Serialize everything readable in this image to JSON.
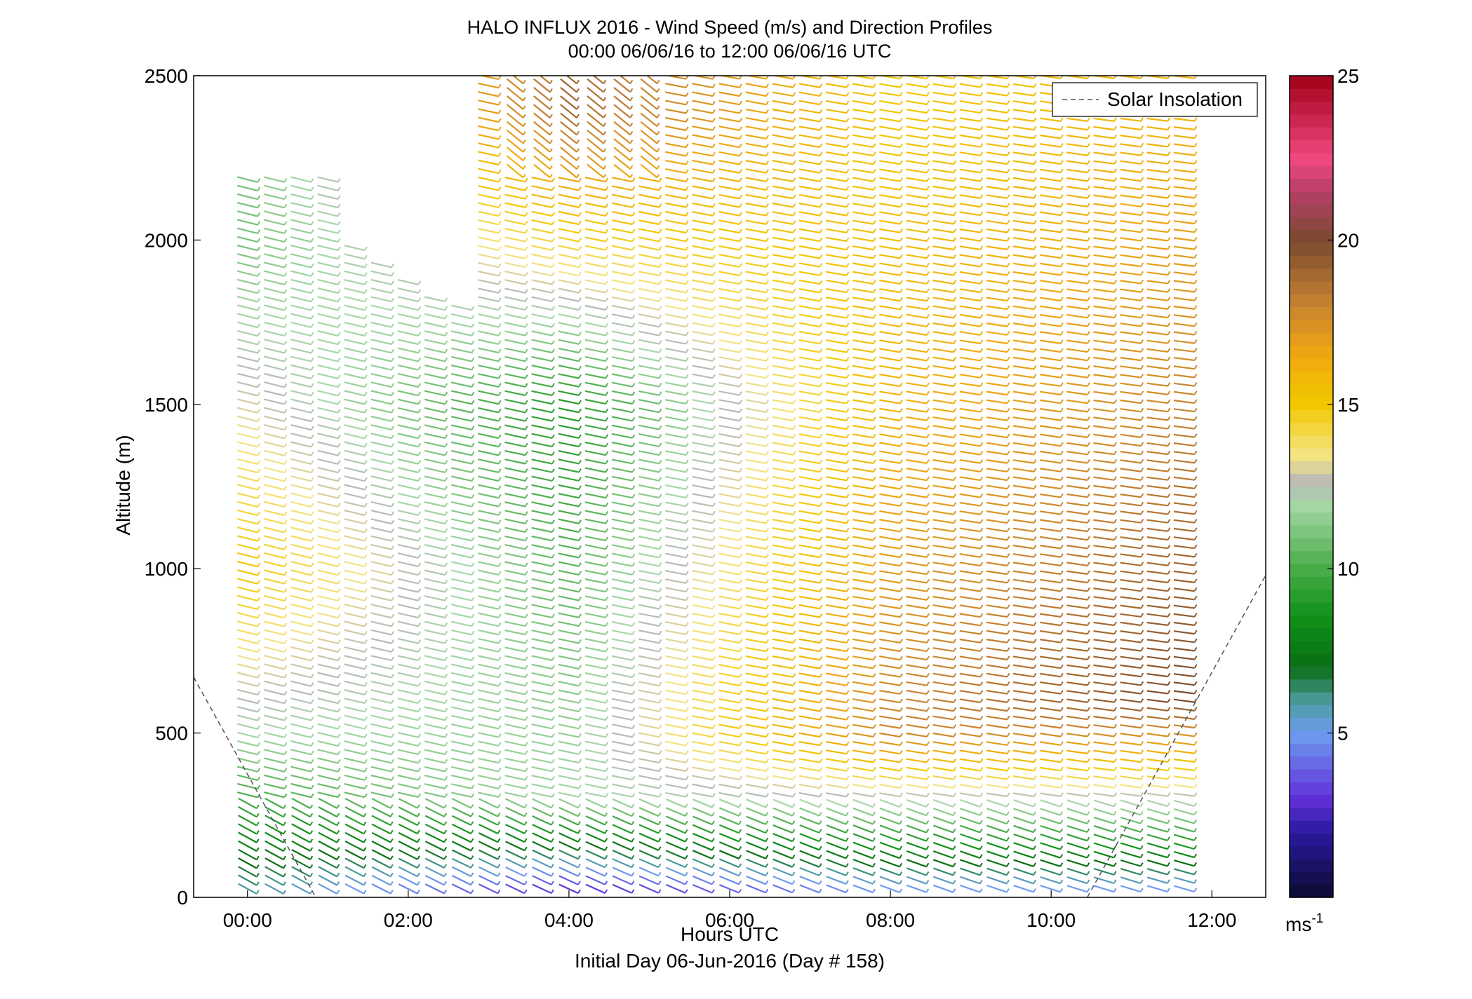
{
  "chart_data": {
    "type": "wind-barb-profile",
    "title": "HALO INFLUX 2016 - Wind Speed (m/s) and Direction Profiles",
    "subtitle": "00:00 06/06/16 to 12:00 06/06/16  UTC",
    "xlabel": "Hours UTC",
    "xlabel2": "Initial Day 06-Jun-2016 (Day # 158)",
    "ylabel": "Altitude (m)",
    "xlim": [
      -0.67,
      12.67
    ],
    "ylim": [
      0,
      2500
    ],
    "x_ticks": [
      0,
      2,
      4,
      6,
      8,
      10,
      12
    ],
    "x_tick_labels": [
      "00:00",
      "02:00",
      "04:00",
      "06:00",
      "08:00",
      "10:00",
      "12:00"
    ],
    "y_ticks": [
      0,
      500,
      1000,
      1500,
      2000,
      2500
    ],
    "y_tick_labels": [
      "0",
      "500",
      "1000",
      "1500",
      "2000",
      "2500"
    ],
    "legend": {
      "entries": [
        "Solar Insolation"
      ],
      "placement": "top-right",
      "line_style": "dashed",
      "line_color": "#555555"
    },
    "colorbar": {
      "range": [
        0,
        25
      ],
      "ticks": [
        5,
        10,
        15,
        20,
        25
      ],
      "tick_labels": [
        "5",
        "10",
        "15",
        "20",
        "25"
      ],
      "unit_base": "ms",
      "unit_exp": "-1",
      "colormap": [
        {
          "v": 0,
          "c": "#0a0a30"
        },
        {
          "v": 2,
          "c": "#2a1aa0"
        },
        {
          "v": 3,
          "c": "#6030d8"
        },
        {
          "v": 5,
          "c": "#6e9cf0"
        },
        {
          "v": 6,
          "c": "#4a9a9a"
        },
        {
          "v": 7,
          "c": "#0a6e14"
        },
        {
          "v": 8.5,
          "c": "#109018"
        },
        {
          "v": 10,
          "c": "#48ac48"
        },
        {
          "v": 12,
          "c": "#a8d8a8"
        },
        {
          "v": 12.6,
          "c": "#b8b8b8"
        },
        {
          "v": 13.4,
          "c": "#f4e488"
        },
        {
          "v": 15,
          "c": "#f2c800"
        },
        {
          "v": 16.5,
          "c": "#f0a810"
        },
        {
          "v": 18,
          "c": "#c88430"
        },
        {
          "v": 20,
          "c": "#7a4a30"
        },
        {
          "v": 21.5,
          "c": "#b84068"
        },
        {
          "v": 22.5,
          "c": "#f04880"
        },
        {
          "v": 25,
          "c": "#a00018"
        }
      ]
    },
    "barbs": {
      "time_range": [
        0,
        11.75
      ],
      "time_step": 0.333,
      "altitude_levels": {
        "start": 26,
        "stop": 2500,
        "step": 26
      },
      "speed_field": [
        {
          "t": 0,
          "alt": 30,
          "speed": 6
        },
        {
          "t": 0,
          "alt": 300,
          "speed": 10
        },
        {
          "t": 0,
          "alt": 500,
          "speed": 12
        },
        {
          "t": 0,
          "alt": 1000,
          "speed": 15
        },
        {
          "t": 0,
          "alt": 2000,
          "speed": 11
        },
        {
          "t": 4,
          "alt": 30,
          "speed": 3
        },
        {
          "t": 4,
          "alt": 300,
          "speed": 12
        },
        {
          "t": 4,
          "alt": 800,
          "speed": 11
        },
        {
          "t": 4,
          "alt": 1500,
          "speed": 9
        },
        {
          "t": 4,
          "alt": 2400,
          "speed": 19
        },
        {
          "t": 8,
          "alt": 30,
          "speed": 5
        },
        {
          "t": 8,
          "alt": 500,
          "speed": 18
        },
        {
          "t": 8,
          "alt": 1500,
          "speed": 16
        },
        {
          "t": 8,
          "alt": 2400,
          "speed": 15
        },
        {
          "t": 11.75,
          "alt": 30,
          "speed": 5
        },
        {
          "t": 11.75,
          "alt": 200,
          "speed": 10
        },
        {
          "t": 11.75,
          "alt": 600,
          "speed": 20
        },
        {
          "t": 11.75,
          "alt": 1500,
          "speed": 18
        },
        {
          "t": 11.75,
          "alt": 2400,
          "speed": 16
        }
      ]
    },
    "solar_insolation_line": [
      {
        "t": -0.67,
        "alt": 670
      },
      {
        "t": 0.85,
        "alt": 0
      },
      {
        "t": 10.45,
        "alt": 0
      },
      {
        "t": 12.67,
        "alt": 980
      }
    ]
  }
}
